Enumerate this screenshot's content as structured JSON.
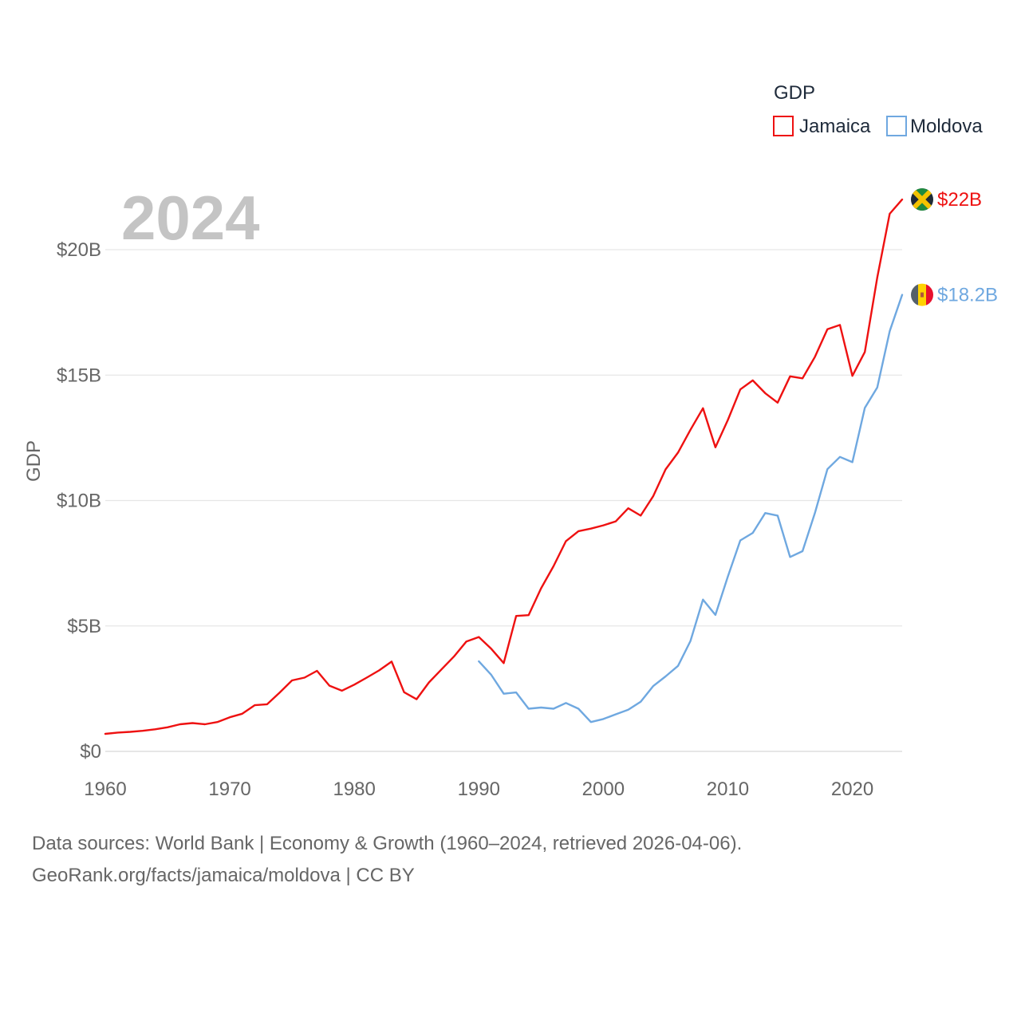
{
  "chart_data": {
    "type": "line",
    "title": "",
    "year_label": "2024",
    "xlabel": "",
    "ylabel": "GDP",
    "xlim": [
      1960,
      2024
    ],
    "ylim": [
      0,
      20000000000
    ],
    "x_ticks": [
      1960,
      1970,
      1980,
      1990,
      2000,
      2010,
      2020
    ],
    "x_tick_labels": [
      "1960",
      "1970",
      "1980",
      "1990",
      "2000",
      "2010",
      "2020"
    ],
    "y_ticks": [
      0,
      5000000000,
      10000000000,
      15000000000,
      20000000000
    ],
    "y_tick_labels": [
      "$0",
      "$5B",
      "$10B",
      "$15B",
      "$20B"
    ],
    "grid": true,
    "legend": {
      "title": "GDP",
      "placement": "top-right",
      "items": [
        "Jamaica",
        "Moldova"
      ]
    },
    "series": [
      {
        "name": "Jamaica",
        "color": "#ee1111",
        "flag": "jamaica-flag",
        "end_label": "$22B",
        "x": [
          1960,
          1961,
          1962,
          1963,
          1964,
          1965,
          1966,
          1967,
          1968,
          1969,
          1970,
          1971,
          1972,
          1973,
          1974,
          1975,
          1976,
          1977,
          1978,
          1979,
          1980,
          1981,
          1982,
          1983,
          1984,
          1985,
          1986,
          1987,
          1988,
          1989,
          1990,
          1991,
          1992,
          1993,
          1994,
          1995,
          1996,
          1997,
          1998,
          1999,
          2000,
          2001,
          2002,
          2003,
          2004,
          2005,
          2006,
          2007,
          2008,
          2009,
          2010,
          2011,
          2012,
          2013,
          2014,
          2015,
          2016,
          2017,
          2018,
          2019,
          2020,
          2021,
          2022,
          2023,
          2024
        ],
        "values": [
          700000000,
          750000000,
          780000000,
          820000000,
          880000000,
          960000000,
          1080000000,
          1130000000,
          1080000000,
          1170000000,
          1360000000,
          1500000000,
          1840000000,
          1880000000,
          2340000000,
          2830000000,
          2940000000,
          3210000000,
          2620000000,
          2420000000,
          2660000000,
          2940000000,
          3230000000,
          3580000000,
          2360000000,
          2080000000,
          2750000000,
          3270000000,
          3780000000,
          4380000000,
          4560000000,
          4090000000,
          3520000000,
          5400000000,
          5430000000,
          6500000000,
          7380000000,
          8380000000,
          8780000000,
          8880000000,
          9010000000,
          9170000000,
          9690000000,
          9400000000,
          10170000000,
          11240000000,
          11910000000,
          12820000000,
          13680000000,
          12120000000,
          13210000000,
          14430000000,
          14790000000,
          14280000000,
          13900000000,
          14950000000,
          14870000000,
          15730000000,
          16830000000,
          17000000000,
          14970000000,
          15920000000,
          18890000000,
          21430000000,
          22000000000
        ]
      },
      {
        "name": "Moldova",
        "color": "#6fa8e0",
        "flag": "moldova-flag",
        "end_label": "$18.2B",
        "x": [
          1990,
          1991,
          1992,
          1993,
          1994,
          1995,
          1996,
          1997,
          1998,
          1999,
          2000,
          2001,
          2002,
          2003,
          2004,
          2005,
          2006,
          2007,
          2008,
          2009,
          2010,
          2011,
          2012,
          2013,
          2014,
          2015,
          2016,
          2017,
          2018,
          2019,
          2020,
          2021,
          2022,
          2023,
          2024
        ],
        "values": [
          3590000000,
          3050000000,
          2300000000,
          2350000000,
          1700000000,
          1750000000,
          1700000000,
          1930000000,
          1700000000,
          1170000000,
          1290000000,
          1480000000,
          1660000000,
          1980000000,
          2600000000,
          2990000000,
          3410000000,
          4400000000,
          6050000000,
          5440000000,
          6970000000,
          8410000000,
          8710000000,
          9500000000,
          9400000000,
          7750000000,
          7980000000,
          9510000000,
          11250000000,
          11740000000,
          11530000000,
          13690000000,
          14510000000,
          16750000000,
          18200000000
        ]
      }
    ]
  },
  "sources": {
    "line1": "Data sources: World Bank | Economy & Growth (1960–2024, retrieved 2026-04-06).",
    "line2": "GeoRank.org/facts/jamaica/moldova | CC BY"
  }
}
